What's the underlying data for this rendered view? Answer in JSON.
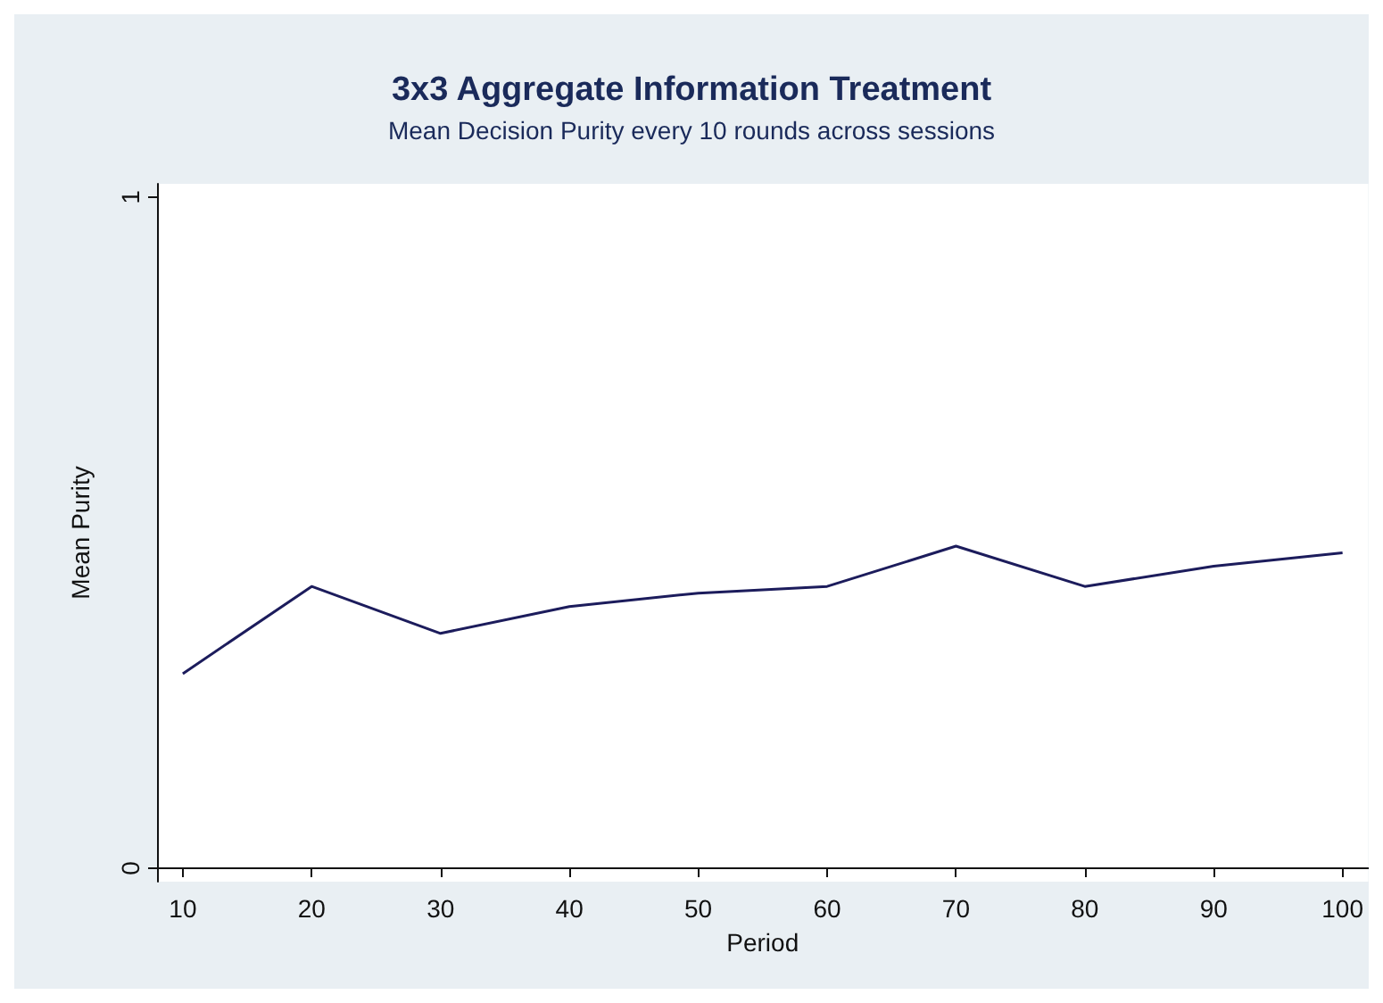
{
  "chart_data": {
    "type": "line",
    "title": "3x3 Aggregate Information Treatment",
    "subtitle": "Mean Decision Purity every 10 rounds across sessions",
    "xlabel": "Period",
    "ylabel": "Mean Purity",
    "x": [
      10,
      20,
      30,
      40,
      50,
      60,
      70,
      80,
      90,
      100
    ],
    "series": [
      {
        "color": "#1c1c5c",
        "values": [
          0.29,
          0.42,
          0.35,
          0.39,
          0.41,
          0.42,
          0.48,
          0.42,
          0.45,
          0.47
        ]
      }
    ],
    "xlim": [
      8,
      102
    ],
    "xticks": [
      10,
      20,
      30,
      40,
      50,
      60,
      70,
      80,
      90,
      100
    ],
    "ylim": [
      -0.02,
      1.02
    ],
    "yticks": [
      0,
      1
    ],
    "marker": "none",
    "line_style": "solid"
  }
}
